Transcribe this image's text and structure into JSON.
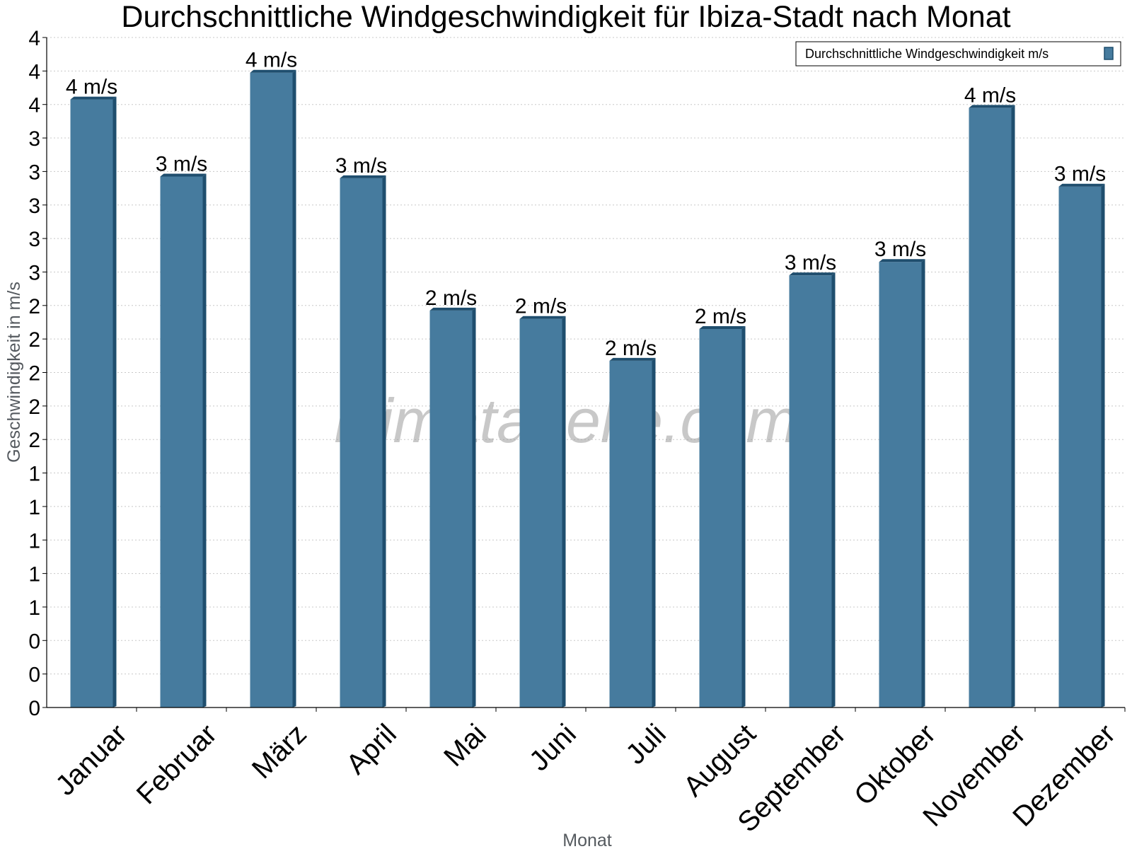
{
  "chart_data": {
    "type": "bar",
    "title": "Durchschnittliche Windgeschwindigkeit für Ibiza-Stadt nach Monat",
    "xlabel": "Monat",
    "ylabel": "Geschwindigkeit in m/s",
    "categories": [
      "Januar",
      "Februar",
      "März",
      "April",
      "Mai",
      "Juni",
      "Juli",
      "August",
      "September",
      "Oktober",
      "November",
      "Dezember"
    ],
    "series": [
      {
        "name": "Durchschnittliche Windgeschwindigkeit m/s",
        "values": [
          3.63,
          3.17,
          3.79,
          3.16,
          2.37,
          2.32,
          2.07,
          2.26,
          2.58,
          2.66,
          3.58,
          3.11
        ],
        "data_labels": [
          "4 m/s",
          "3 m/s",
          "4 m/s",
          "3 m/s",
          "2 m/s",
          "2 m/s",
          "2 m/s",
          "2 m/s",
          "3 m/s",
          "3 m/s",
          "4 m/s",
          "3 m/s"
        ]
      }
    ],
    "ylim": [
      0,
      4
    ],
    "y_ticks": [
      {
        "value": 0.0,
        "label": "0"
      },
      {
        "value": 0.2,
        "label": "0"
      },
      {
        "value": 0.4,
        "label": "0"
      },
      {
        "value": 0.6,
        "label": "1"
      },
      {
        "value": 0.8,
        "label": "1"
      },
      {
        "value": 1.0,
        "label": "1"
      },
      {
        "value": 1.2,
        "label": "1"
      },
      {
        "value": 1.4,
        "label": "1"
      },
      {
        "value": 1.6,
        "label": "2"
      },
      {
        "value": 1.8,
        "label": "2"
      },
      {
        "value": 2.0,
        "label": "2"
      },
      {
        "value": 2.2,
        "label": "2"
      },
      {
        "value": 2.4,
        "label": "2"
      },
      {
        "value": 2.6,
        "label": "3"
      },
      {
        "value": 2.8,
        "label": "3"
      },
      {
        "value": 3.0,
        "label": "3"
      },
      {
        "value": 3.2,
        "label": "3"
      },
      {
        "value": 3.4,
        "label": "3"
      },
      {
        "value": 3.6,
        "label": "4"
      },
      {
        "value": 3.8,
        "label": "4"
      },
      {
        "value": 4.0,
        "label": "4"
      }
    ],
    "grid": true,
    "legend_position": "top-right",
    "colors": {
      "bar": "#467b9e",
      "bar_side": "#1f4e6e",
      "bar_top": "#1f4e6e",
      "grid": "#c8c8c8",
      "axis": "#000000"
    }
  },
  "watermark": "klimatabelle.com"
}
